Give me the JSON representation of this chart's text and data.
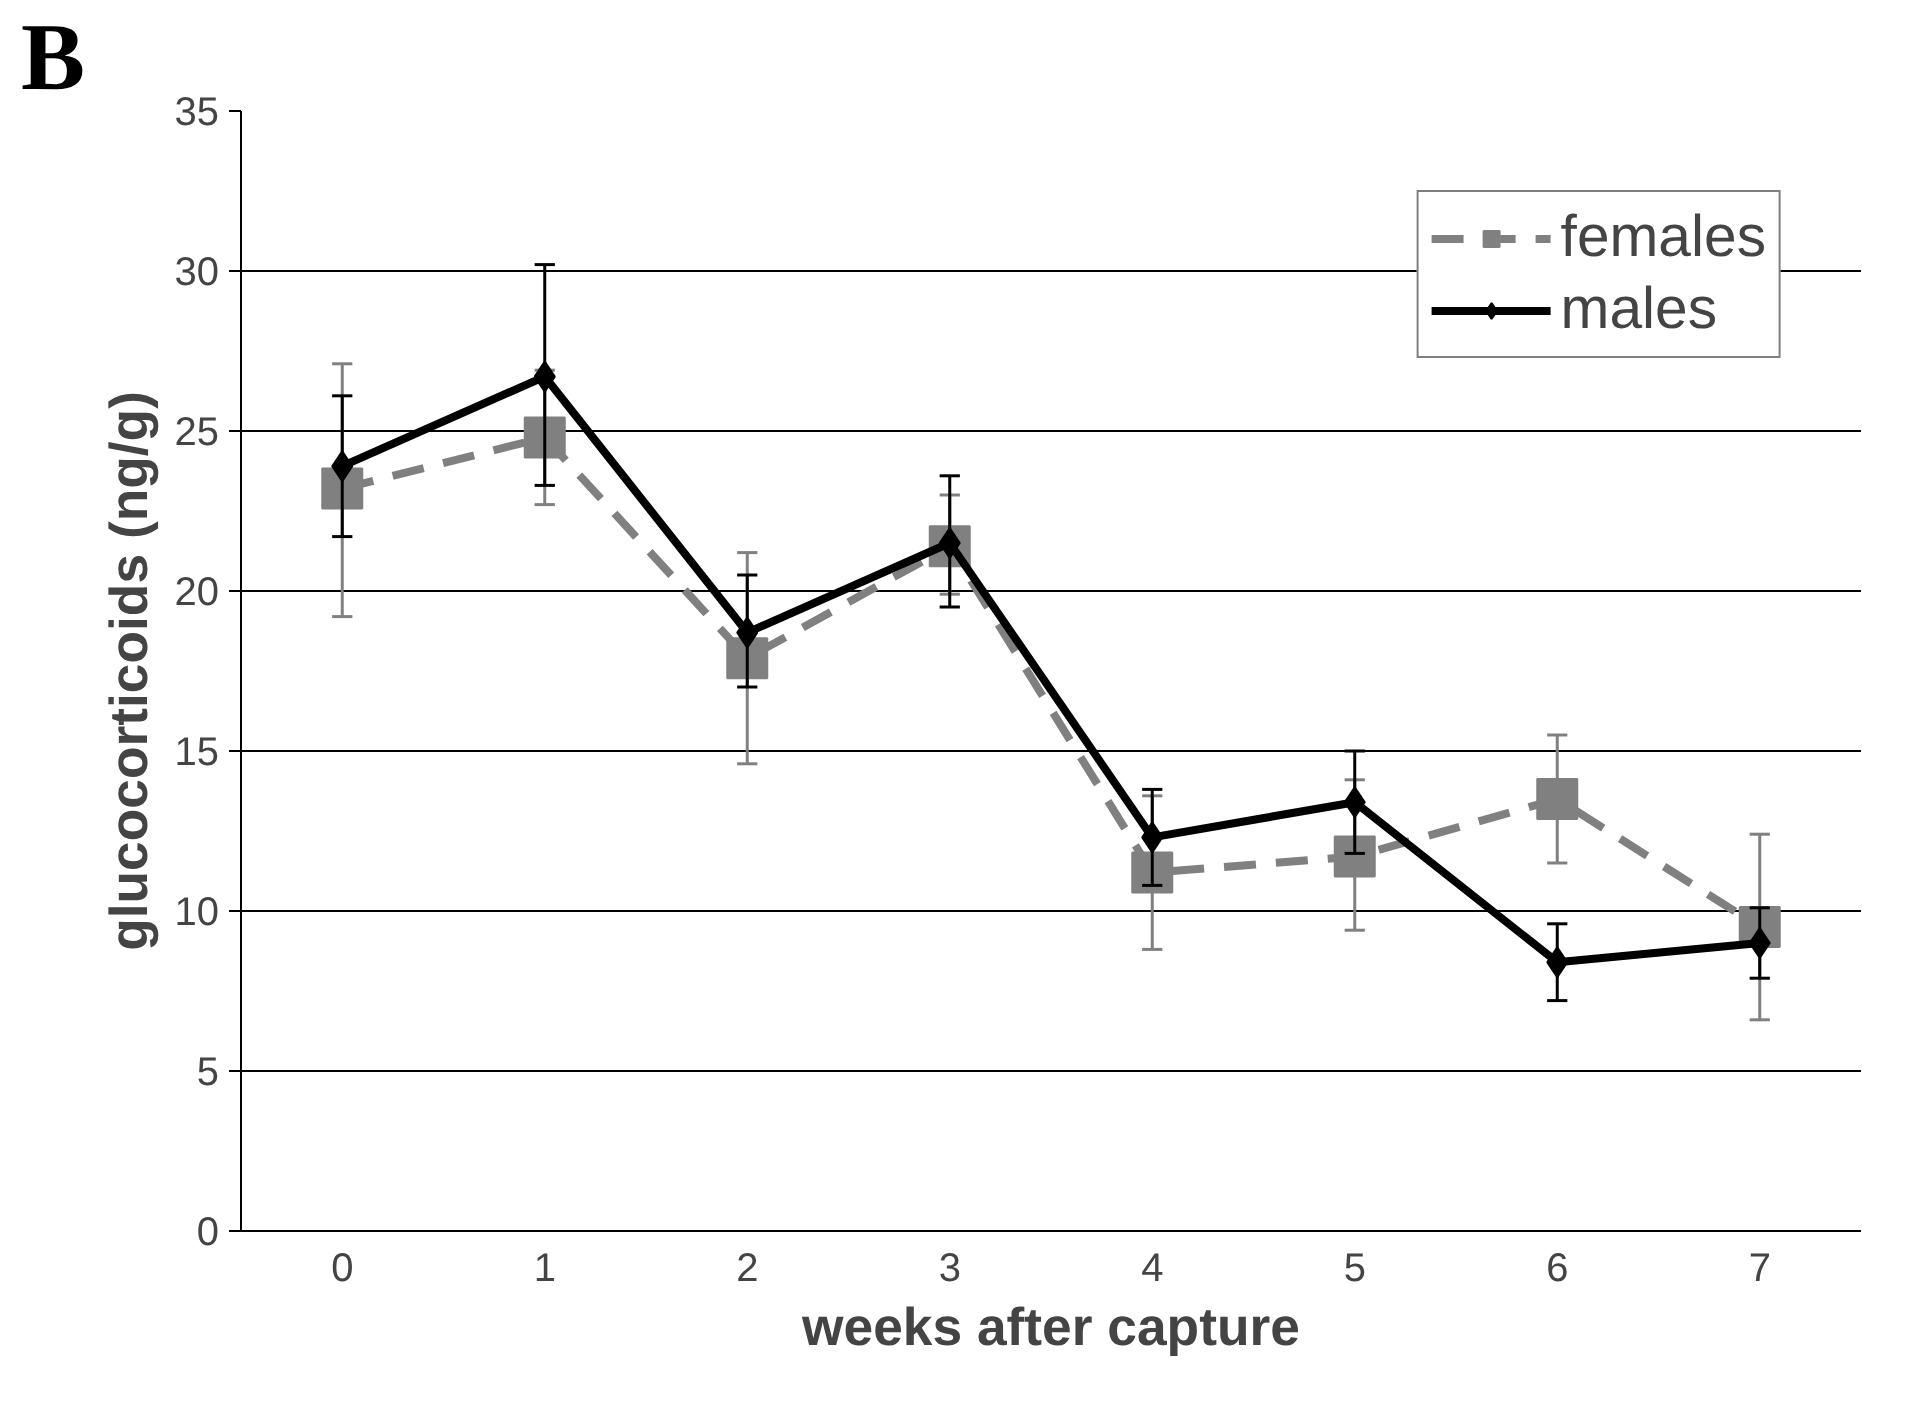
{
  "chart_data": {
    "type": "line",
    "xlabel": "weeks after capture",
    "ylabel": "glucocorticoids (ng/g)",
    "annotations": [
      "B"
    ],
    "categories": [
      "0",
      "1",
      "2",
      "3",
      "4",
      "5",
      "6",
      "7"
    ],
    "series": [
      {
        "name": "females",
        "color": "#808080",
        "marker": "square",
        "line_style": "dashed",
        "values": [
          23.2,
          24.8,
          17.9,
          21.4,
          11.2,
          11.7,
          13.5,
          9.5
        ],
        "errors": [
          [
            19.2,
            27.1
          ],
          [
            22.7,
            26.9
          ],
          [
            14.6,
            21.2
          ],
          [
            19.9,
            23.0
          ],
          [
            8.8,
            13.6
          ],
          [
            9.4,
            14.1
          ],
          [
            11.5,
            15.5
          ],
          [
            6.6,
            12.4
          ]
        ]
      },
      {
        "name": "males",
        "color": "#000000",
        "marker": "diamond",
        "line_style": "solid",
        "values": [
          23.9,
          26.7,
          18.7,
          21.5,
          12.3,
          13.4,
          8.4,
          9.0
        ],
        "errors": [
          [
            21.7,
            26.1
          ],
          [
            23.3,
            30.2
          ],
          [
            17.0,
            20.5
          ],
          [
            19.5,
            23.6
          ],
          [
            10.8,
            13.8
          ],
          [
            11.8,
            15.0
          ],
          [
            7.2,
            9.6
          ],
          [
            7.9,
            10.1
          ]
        ]
      }
    ],
    "ylim": [
      0,
      35
    ],
    "yticks": [
      0,
      5,
      10,
      15,
      20,
      25,
      30,
      35
    ],
    "grid": "y",
    "legend": "top right"
  }
}
